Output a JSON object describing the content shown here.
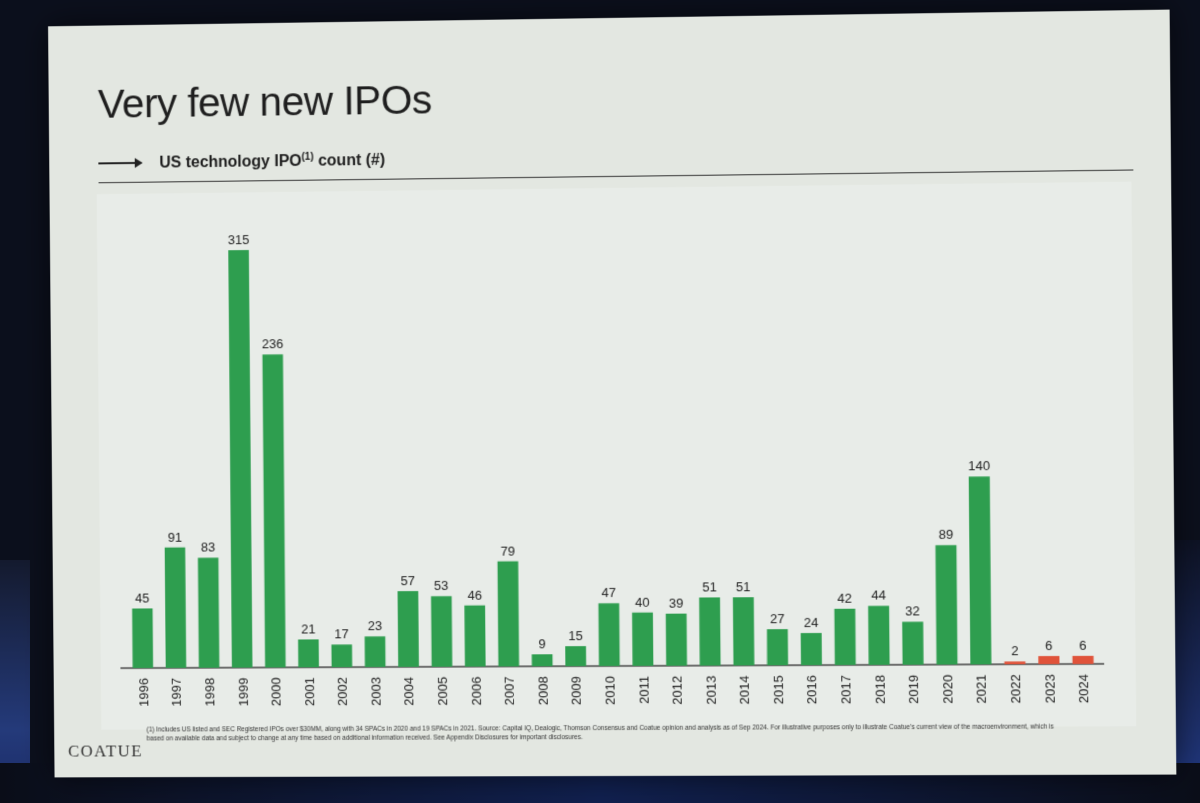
{
  "slide": {
    "title": "Very few new IPOs",
    "subtitle": "US technology IPO",
    "subtitle_sup": "(1)",
    "subtitle_suffix": " count (#)",
    "footnote": "(1) Includes US listed and SEC Registered IPOs over $30MM, along with 34 SPACs in 2020 and 19 SPACs in 2021. Source: Capital IQ, Dealogic, Thomson Consensus and Coatue opinion and analysis as of Sep 2024. For illustrative purposes only to illustrate Coatue's current view of the macroenvironment, which is based on available data and subject to change at any time based on additional information received. See Appendix Disclosures for important disclosures.",
    "logo": "COATUE"
  },
  "chart_data": {
    "type": "bar",
    "title": "US technology IPO count (#)",
    "xlabel": "",
    "ylabel": "",
    "ylim": [
      0,
      315
    ],
    "grid": false,
    "legend": "none",
    "categories": [
      "1996",
      "1997",
      "1998",
      "1999",
      "2000",
      "2001",
      "2002",
      "2003",
      "2004",
      "2005",
      "2006",
      "2007",
      "2008",
      "2009",
      "2010",
      "2011",
      "2012",
      "2013",
      "2014",
      "2015",
      "2016",
      "2017",
      "2018",
      "2019",
      "2020",
      "2021",
      "2022",
      "2023",
      "2024"
    ],
    "values": [
      45,
      91,
      83,
      315,
      236,
      21,
      17,
      23,
      57,
      53,
      46,
      79,
      9,
      15,
      47,
      40,
      39,
      51,
      51,
      27,
      24,
      42,
      44,
      32,
      89,
      140,
      2,
      6,
      6
    ],
    "data_labels": [
      "45",
      "91",
      "83",
      "315",
      "236",
      "21",
      "17",
      "23",
      "57",
      "53",
      "46",
      "79",
      "9",
      "15",
      "47",
      "40",
      "39",
      "51",
      "51",
      "27",
      "24",
      "42",
      "44",
      "32",
      "89",
      "140",
      "2",
      "6",
      "6"
    ],
    "highlighted_categories": [
      "2022",
      "2023",
      "2024"
    ],
    "colors": {
      "bar": "#2e9e4f",
      "highlight": "#e0533a",
      "label": "#222222",
      "axis": "#444444"
    }
  }
}
